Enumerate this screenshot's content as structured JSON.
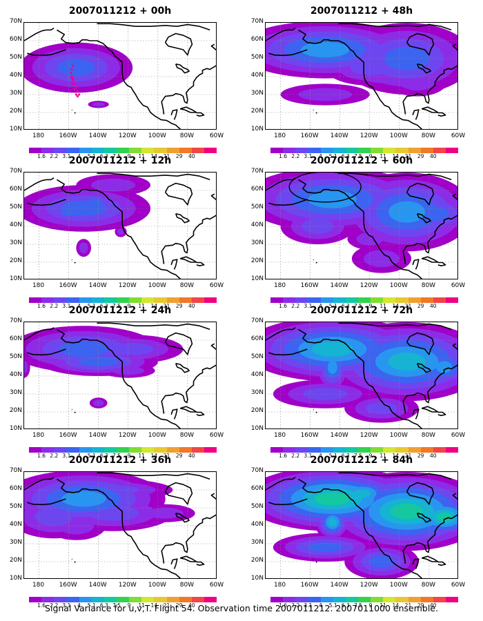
{
  "figure": {
    "caption": "Signal Variance for u,v,T. Flight 54. Observation time 2007011212. 2007011000 ensemble."
  },
  "axes": {
    "lat_labels": [
      "70N",
      "60N",
      "50N",
      "40N",
      "30N",
      "20N",
      "10N"
    ],
    "lon_labels": [
      "180",
      "160W",
      "140W",
      "120W",
      "100W",
      "80W",
      "60W"
    ]
  },
  "colorbar": {
    "labels": [
      "1.6",
      "2.2",
      "3.1",
      "4",
      "5.1",
      "6.3",
      "7.5",
      "9",
      "11",
      "14",
      "21",
      "29",
      "40"
    ],
    "colors": [
      "#a000c8",
      "#8c2ce6",
      "#6e46f0",
      "#3c64f0",
      "#2896f0",
      "#14b4d2",
      "#14c8a0",
      "#32d250",
      "#82dc32",
      "#d2e632",
      "#e6c832",
      "#f0a032",
      "#f07828",
      "#f04646",
      "#f00082"
    ]
  },
  "panels": [
    {
      "title": "2007011212 + 00h",
      "level": 0
    },
    {
      "title": "2007011212 + 12h",
      "level": 1
    },
    {
      "title": "2007011212 + 24h",
      "level": 2
    },
    {
      "title": "2007011212 + 36h",
      "level": 3
    },
    {
      "title": "2007011212 + 48h",
      "level": 4
    },
    {
      "title": "2007011212 + 60h",
      "level": 5
    },
    {
      "title": "2007011212 + 72h",
      "level": 6
    },
    {
      "title": "2007011212 + 84h",
      "level": 7
    }
  ]
}
